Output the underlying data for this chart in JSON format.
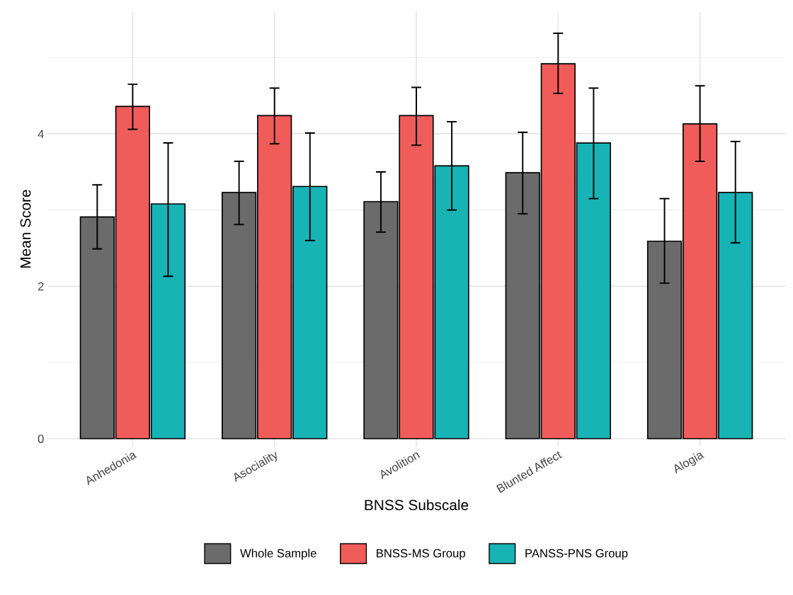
{
  "chart_data": {
    "type": "bar",
    "xlabel": "BNSS Subscale",
    "ylabel": "Mean Score",
    "categories": [
      "Anhedonia",
      "Asociality",
      "Avolition",
      "Blunted Affect",
      "Alogia"
    ],
    "series": [
      {
        "name": "Whole Sample",
        "color": "#6b6b6b",
        "values": [
          2.91,
          3.23,
          3.11,
          3.49,
          2.59
        ],
        "errors": [
          [
            2.49,
            3.33
          ],
          [
            2.81,
            3.64
          ],
          [
            2.71,
            3.5
          ],
          [
            2.95,
            4.02
          ],
          [
            2.04,
            3.15
          ]
        ]
      },
      {
        "name": "BNSS-MS Group",
        "color": "#f05c5a",
        "values": [
          4.36,
          4.24,
          4.24,
          4.92,
          4.13
        ],
        "errors": [
          [
            4.06,
            4.65
          ],
          [
            3.87,
            4.6
          ],
          [
            3.85,
            4.61
          ],
          [
            4.53,
            5.32
          ],
          [
            3.64,
            4.63
          ]
        ]
      },
      {
        "name": "PANSS-PNS Group",
        "color": "#17b3b5",
        "values": [
          3.08,
          3.31,
          3.58,
          3.88,
          3.23
        ],
        "errors": [
          [
            2.13,
            3.88
          ],
          [
            2.6,
            4.01
          ],
          [
            3.0,
            4.16
          ],
          [
            3.15,
            4.6
          ],
          [
            2.57,
            3.9
          ]
        ]
      }
    ],
    "ylim": [
      -0.1,
      5.6
    ],
    "yticks": [
      0,
      2,
      4
    ],
    "grid": true,
    "legend": "bottom"
  }
}
